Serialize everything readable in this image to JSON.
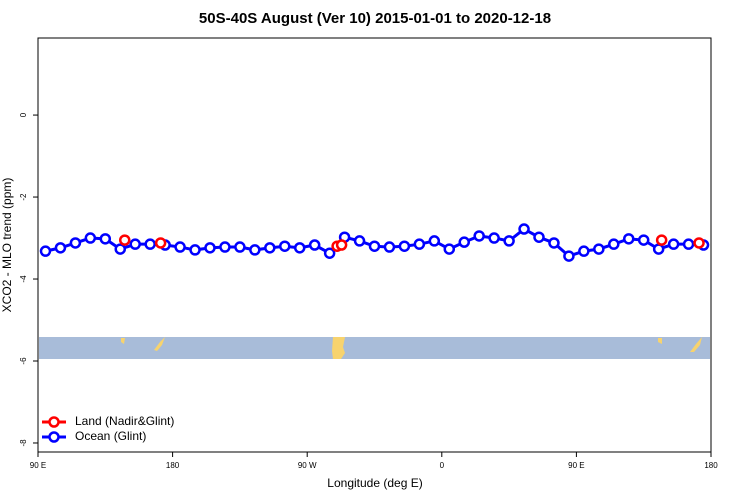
{
  "chart_data": {
    "type": "line",
    "title": "50S-40S August (Ver 10)   2015-01-01 to 2020-12-18",
    "xlabel": "Longitude (deg E)",
    "ylabel": "XCO2 - MLO trend (ppm)",
    "xlim": [
      90,
      540
    ],
    "xticks": [
      {
        "value": 90,
        "label": "90 E"
      },
      {
        "value": 180,
        "label": "180"
      },
      {
        "value": 270,
        "label": "90 W"
      },
      {
        "value": 360,
        "label": "0"
      },
      {
        "value": 450,
        "label": "90 E"
      },
      {
        "value": 540,
        "label": "180"
      }
    ],
    "ylim": [
      -8.22,
      1.88
    ],
    "yticks": [
      0,
      -2,
      -4,
      -6,
      -8
    ],
    "legend": "bottom-left",
    "series": [
      {
        "name": "Land (Nadir&Glint)",
        "color": "#ff0000",
        "connect": false,
        "x": [
          148,
          172,
          290,
          293,
          507,
          532
        ],
        "values": [
          -3.05,
          -3.12,
          -3.2,
          -3.17,
          -3.05,
          -3.12
        ]
      },
      {
        "name": "Ocean (Glint)",
        "color": "#0000ff",
        "connect": true,
        "x": [
          95,
          105,
          115,
          125,
          135,
          145,
          155,
          165,
          175,
          185,
          195,
          205,
          215,
          225,
          235,
          245,
          255,
          265,
          275,
          285,
          295,
          305,
          315,
          325,
          335,
          345,
          355,
          365,
          375,
          385,
          395,
          405,
          415,
          425,
          435,
          445,
          455,
          465,
          475,
          485,
          495,
          505,
          515,
          525,
          535
        ],
        "values": [
          -3.32,
          -3.24,
          -3.12,
          -3.0,
          -3.02,
          -3.27,
          -3.15,
          -3.15,
          -3.17,
          -3.22,
          -3.29,
          -3.24,
          -3.22,
          -3.22,
          -3.29,
          -3.24,
          -3.2,
          -3.24,
          -3.17,
          -3.37,
          -2.98,
          -3.07,
          -3.2,
          -3.22,
          -3.2,
          -3.15,
          -3.07,
          -3.27,
          -3.1,
          -2.95,
          -3.0,
          -3.07,
          -2.78,
          -2.98,
          -3.12,
          -3.44,
          -3.32,
          -3.27,
          -3.15,
          -3.02,
          -3.05,
          -3.27,
          -3.15,
          -3.15,
          -3.17
        ]
      }
    ]
  }
}
